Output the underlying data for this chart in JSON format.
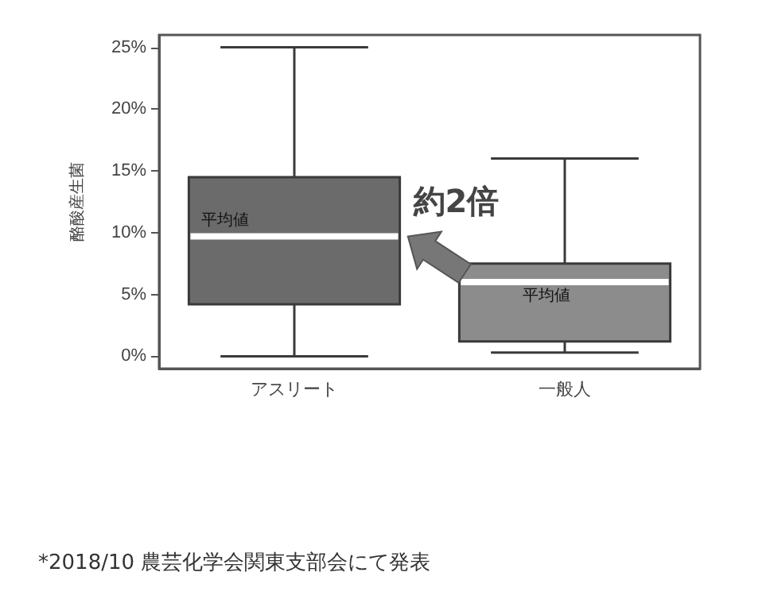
{
  "chart_data": {
    "type": "box",
    "ylabel": "酪酸産生菌",
    "categories": [
      "アスリート",
      "一般人"
    ],
    "boxes": [
      {
        "low": 0,
        "q1": 4.2,
        "median": 9.7,
        "q3": 14.5,
        "high": 25
      },
      {
        "low": 0.3,
        "q1": 1.2,
        "median": 6.0,
        "q3": 7.5,
        "high": 16
      }
    ],
    "colors": [
      "#6b6b6b",
      "#8c8c8c"
    ],
    "ylim": [
      -1,
      26
    ],
    "yticks": [
      {
        "value": 0,
        "label": "0%"
      },
      {
        "value": 5,
        "label": "5%"
      },
      {
        "value": 10,
        "label": "10%"
      },
      {
        "value": 15,
        "label": "15%"
      },
      {
        "value": 20,
        "label": "20%"
      },
      {
        "value": 25,
        "label": "25%"
      }
    ],
    "grid": false,
    "annotations": [
      {
        "text": "平均値",
        "x": "アスリート",
        "y": 9.7
      },
      {
        "text": "平均値",
        "x": "一般人",
        "y": 6.0
      },
      "約2倍",
      "*2018/10 農芸化学会関東支部会にて発表"
    ]
  }
}
